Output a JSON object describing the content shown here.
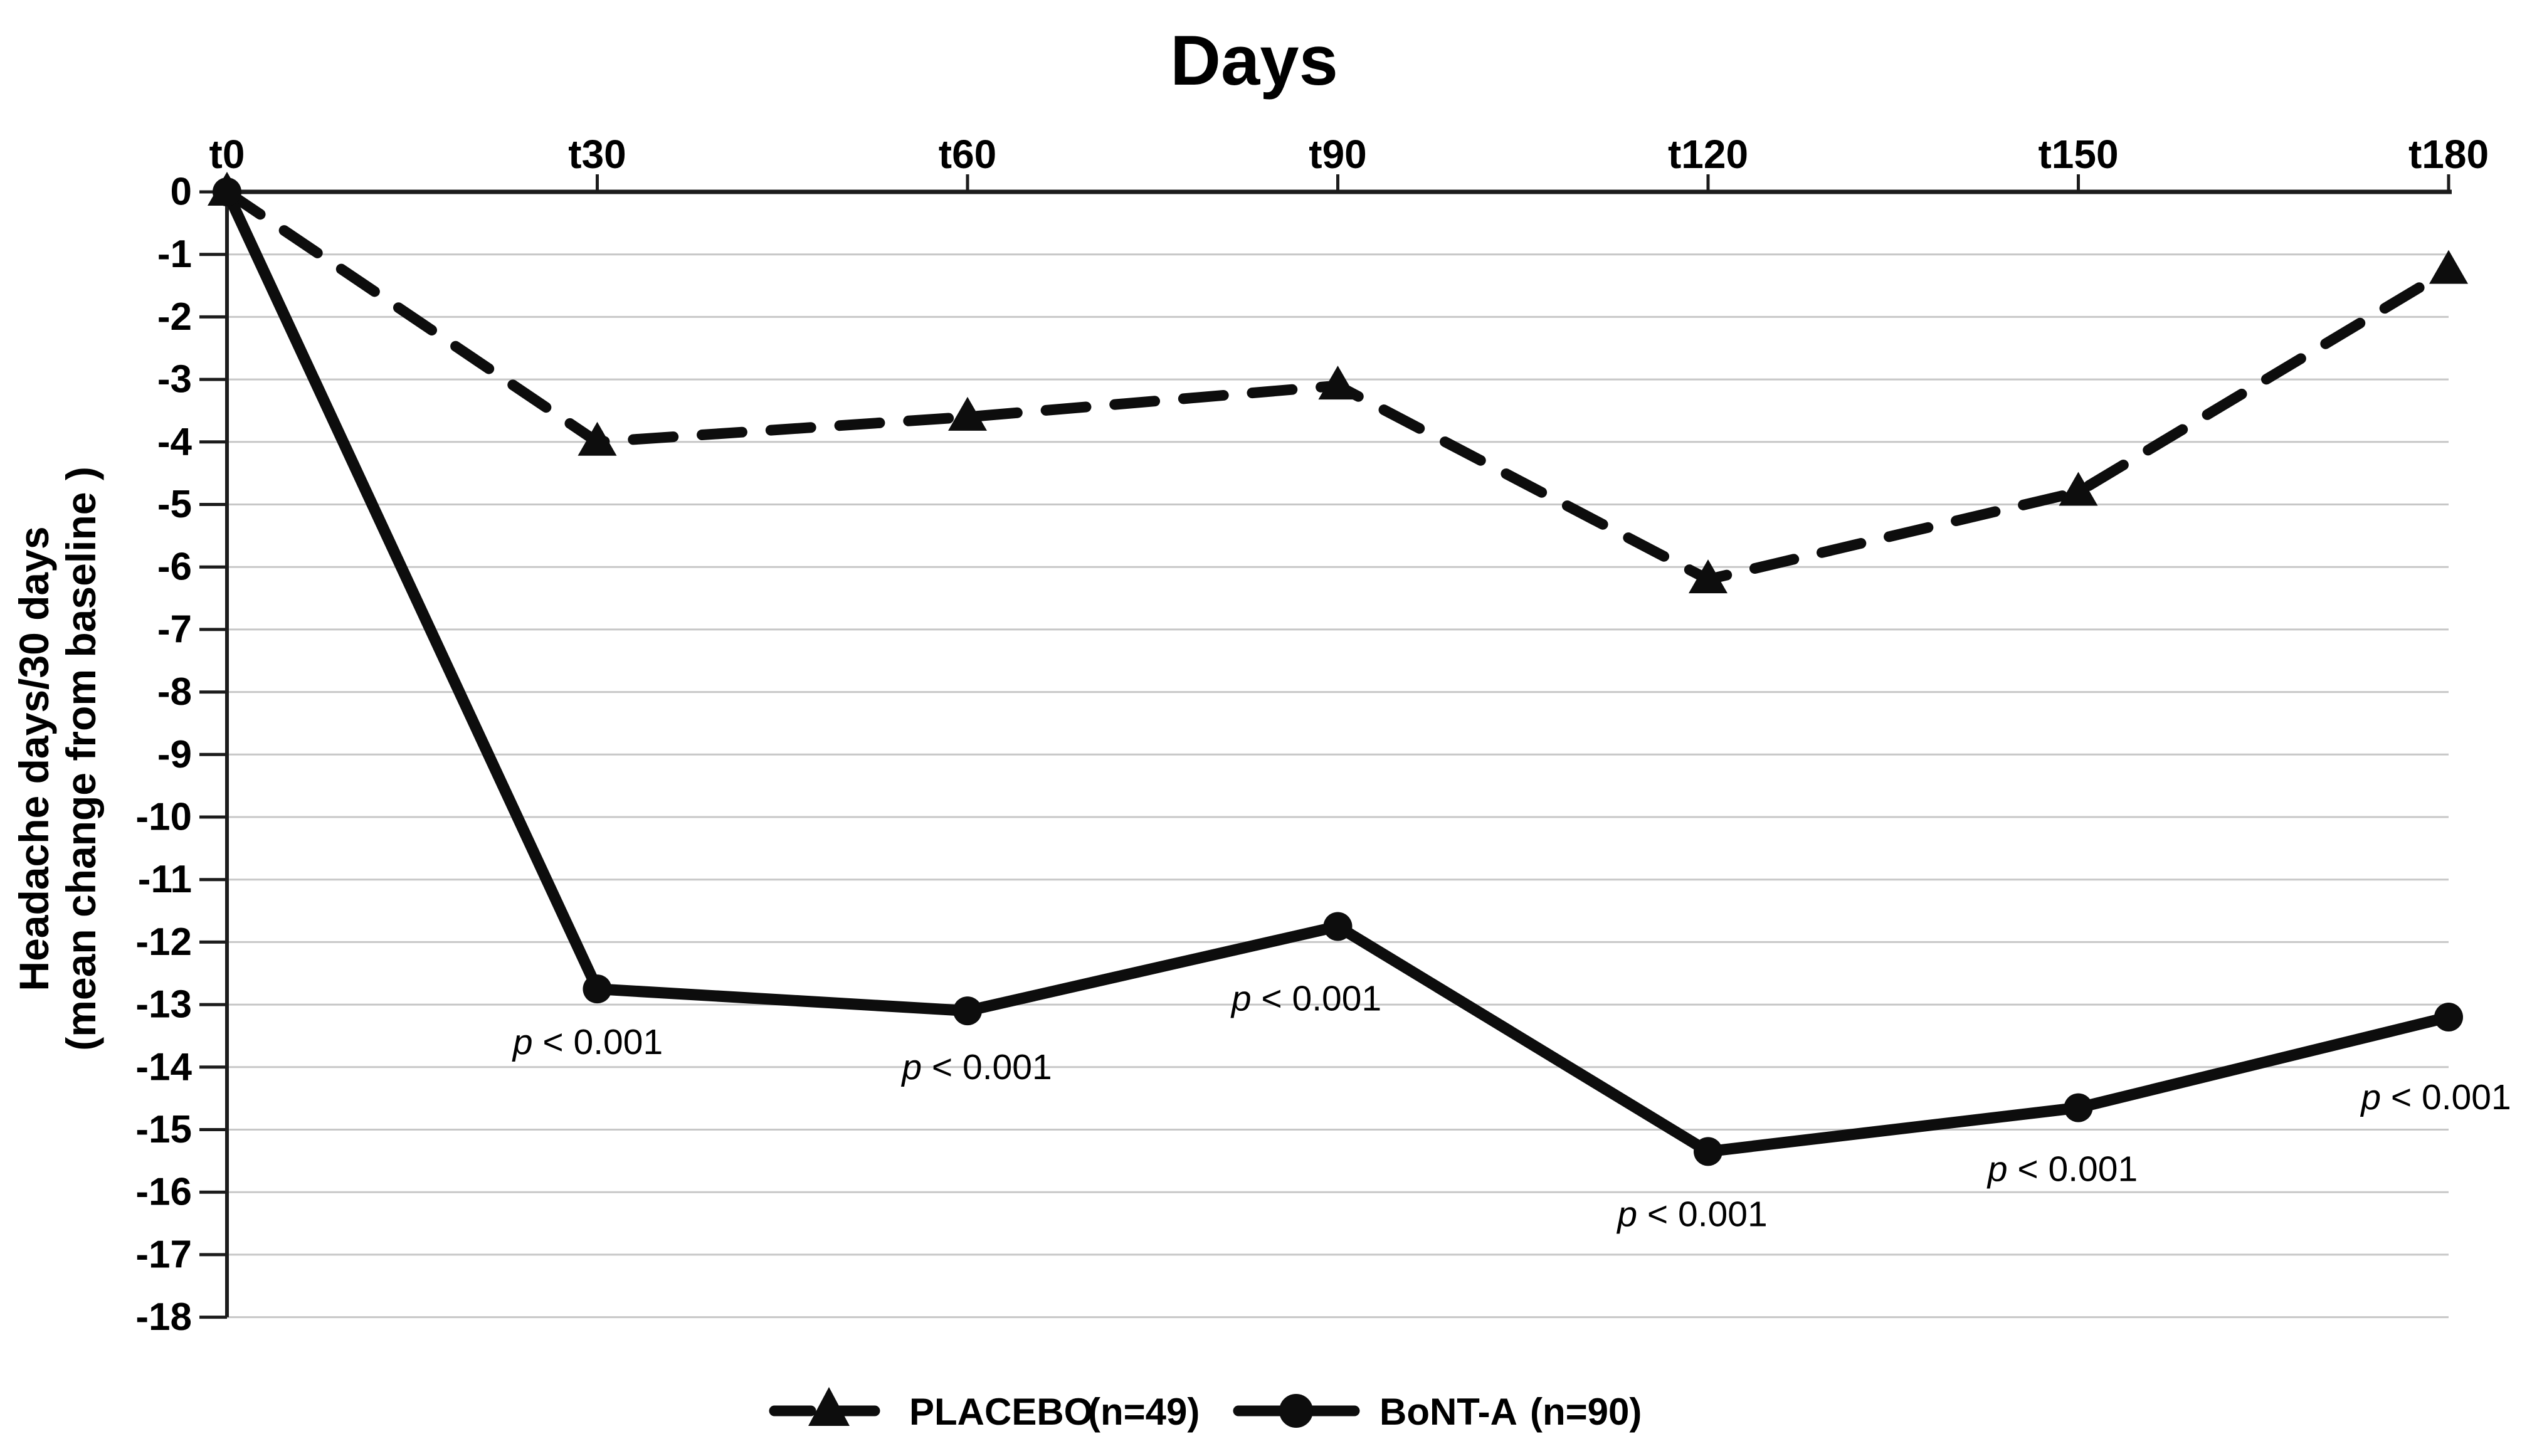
{
  "title": "Days",
  "y_axis_title": {
    "line1": "Headache days/30 days",
    "line2": "(mean change from baseline )"
  },
  "colors": {
    "series": "#0d0d0d",
    "grid": "#c7c7c7",
    "axis": "#1c1c1c",
    "text": "#000000",
    "background": "#ffffff"
  },
  "chart_data": {
    "type": "line",
    "title": "Days",
    "xlabel": "Days",
    "ylabel": "Headache days/30 days (mean change from baseline)",
    "x_axis_side": "top",
    "grid": "horizontal",
    "legend_position": "bottom",
    "ylim": [
      -18,
      0
    ],
    "x_categories": [
      "t0",
      "t30",
      "t60",
      "t90",
      "t120",
      "t150",
      "t180"
    ],
    "y_tick_labels": [
      "0",
      "-1",
      "-2",
      "-3",
      "-4",
      "-5",
      "-6",
      "-7",
      "-8",
      "-9",
      "-10",
      "-11",
      "-12",
      "-13",
      "-14",
      "-15",
      "-16",
      "-17",
      "-18"
    ],
    "series": [
      {
        "name": "PLACEBO",
        "n_label": "(n=49)",
        "marker": "triangle",
        "line_style": "dashed",
        "values": [
          0,
          -4.0,
          -3.6,
          -3.1,
          -6.2,
          -4.8,
          -1.25
        ]
      },
      {
        "name": "BoNT-A",
        "n_label": "(n=90)",
        "marker": "circle",
        "line_style": "solid",
        "values": [
          0,
          -12.75,
          -13.1,
          -11.75,
          -15.35,
          -14.65,
          -13.2
        ]
      }
    ],
    "annotations": [
      {
        "series": "BoNT-A",
        "category": "t30",
        "lead": "p",
        "rest": " < 0.001",
        "text": "p < 0.001"
      },
      {
        "series": "BoNT-A",
        "category": "t60",
        "lead": "p",
        "rest": " < 0.001",
        "text": "p < 0.001"
      },
      {
        "series": "BoNT-A",
        "category": "t90",
        "lead": "p",
        "rest": " < 0.001",
        "text": "p < 0.001"
      },
      {
        "series": "BoNT-A",
        "category": "t120",
        "lead": "p",
        "rest": " < 0.001",
        "text": "p < 0.001"
      },
      {
        "series": "BoNT-A",
        "category": "t150",
        "lead": "p",
        "rest": " < 0.001",
        "text": "p < 0.001"
      },
      {
        "series": "BoNT-A",
        "category": "t180",
        "lead": "p",
        "rest": " < 0.001",
        "text": "p < 0.001"
      }
    ]
  }
}
